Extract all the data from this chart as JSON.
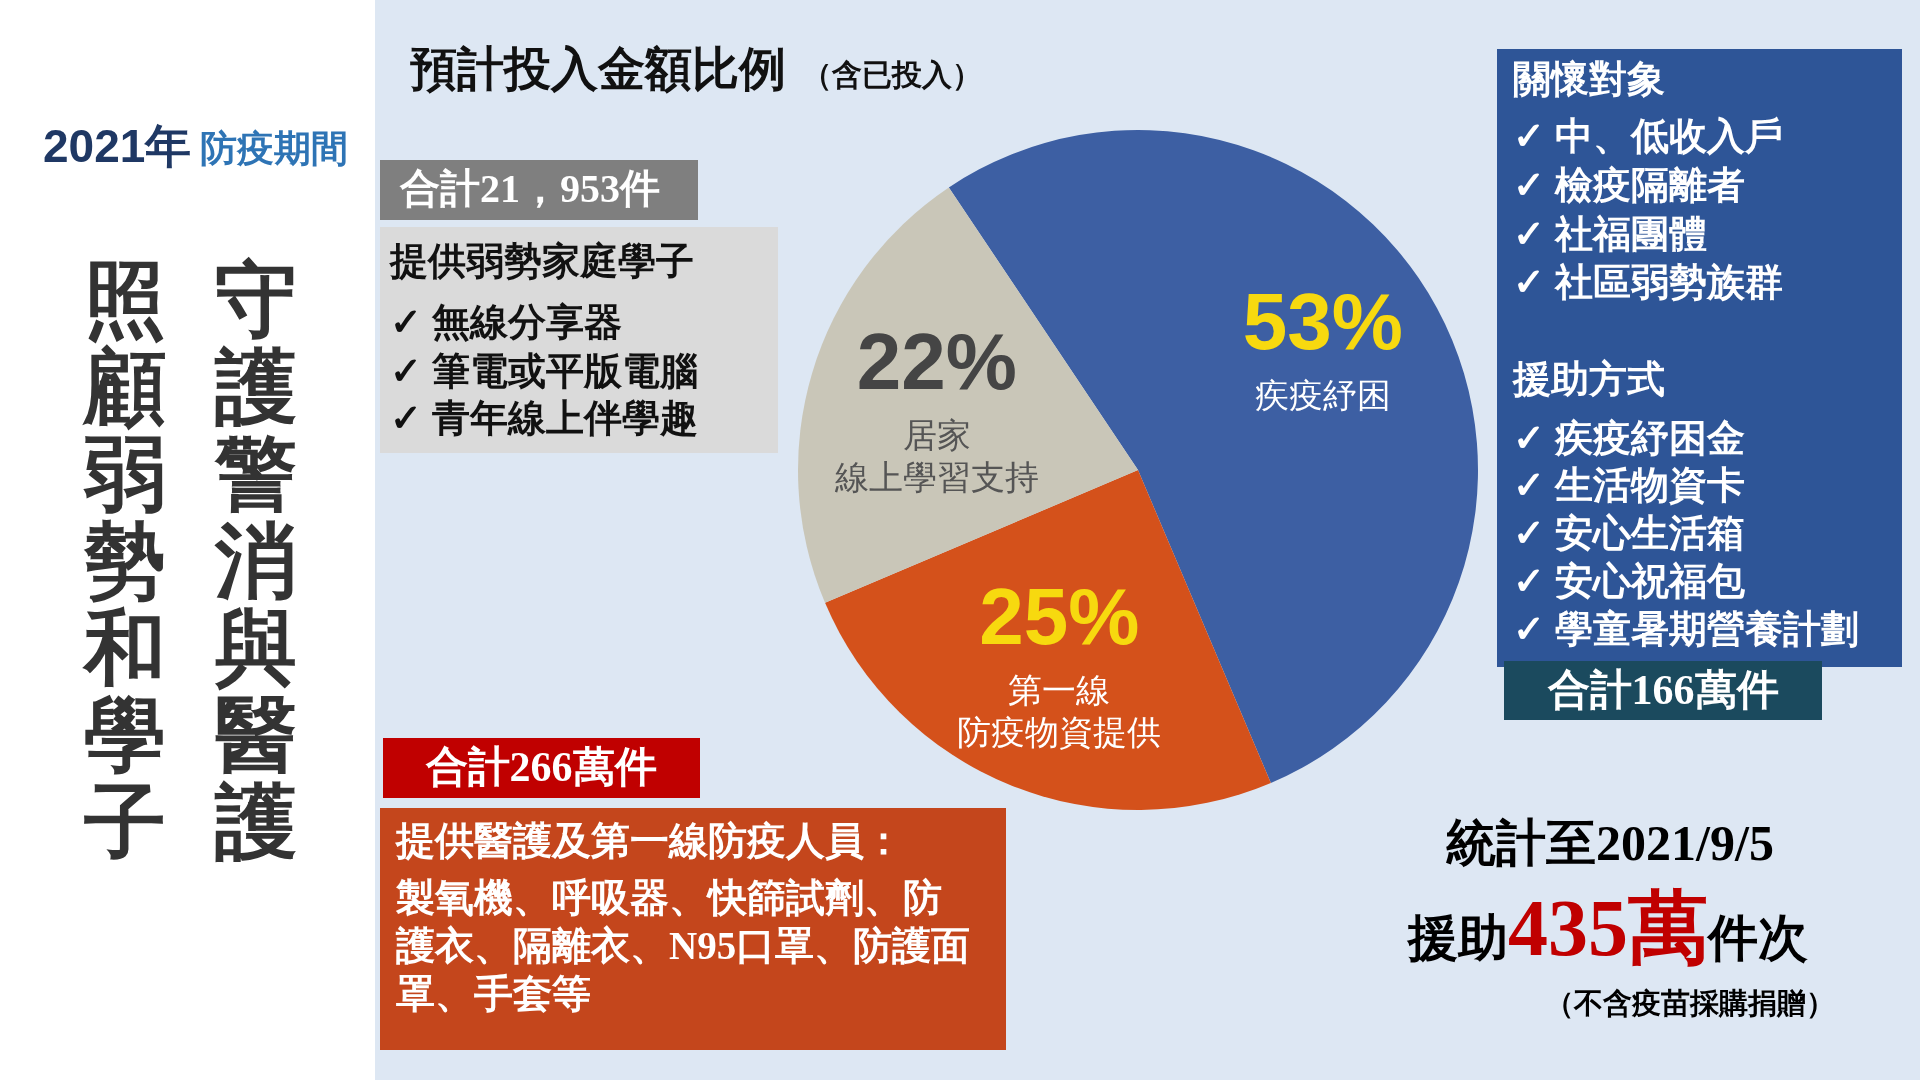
{
  "chart_data": {
    "type": "pie",
    "title": "預計投入金額比例",
    "subtitle": "（含已投入）",
    "categories": [
      "疾疫紓困",
      "第一線防疫物資提供",
      "居家線上學習支持"
    ],
    "values": [
      53,
      25,
      22
    ],
    "colors": [
      "#3d5fa3",
      "#d4511b",
      "#c9c6b8"
    ],
    "value_labels": [
      "53%",
      "25%",
      "22%"
    ],
    "annotations": [
      "2021年",
      "防疫期間",
      "守護警消與醫護",
      "照顧弱勢和學子",
      "合計21，953件",
      "提供弱勢家庭學子",
      "✓ 無線分享器",
      "✓ 筆電或平版電腦",
      "✓ 青年線上伴學趣",
      "關懷對象",
      "✓ 中、低收入戶",
      "✓ 檢疫隔離者",
      "✓ 社福團體",
      "✓ 社區弱勢族群",
      "援助方式",
      "✓ 疾疫紓困金",
      "✓ 生活物資卡",
      "✓ 安心生活箱",
      "✓ 安心祝福包",
      "✓ 學童暑期營養計劃",
      "合計166萬件",
      "合計266萬件",
      "提供醫護及第一線防疫人員：",
      "製氧機、呼吸器、快篩試劑、防護衣、隔離衣、N95口罩、防護面罩、手套等",
      "統計至2021/9/5",
      "援助",
      "435萬",
      "件次",
      "（不含疫苗採購捐贈）"
    ]
  }
}
